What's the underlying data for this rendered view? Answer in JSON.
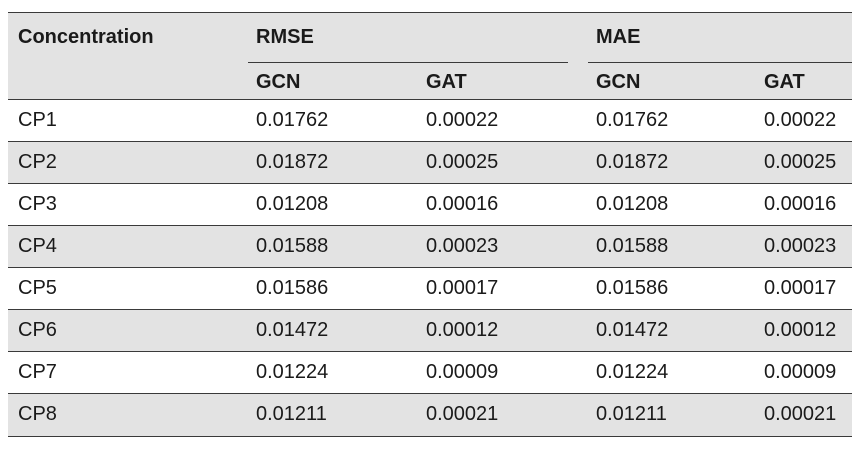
{
  "table": {
    "header": {
      "first_col": "Concentration",
      "group1": "RMSE",
      "group2": "MAE",
      "sub": [
        "GCN",
        "GAT",
        "GCN",
        "GAT"
      ]
    },
    "rows": [
      [
        "CP1",
        "0.01762",
        "0.00022",
        "0.01762",
        "0.00022"
      ],
      [
        "CP2",
        "0.01872",
        "0.00025",
        "0.01872",
        "0.00025"
      ],
      [
        "CP3",
        "0.01208",
        "0.00016",
        "0.01208",
        "0.00016"
      ],
      [
        "CP4",
        "0.01588",
        "0.00023",
        "0.01588",
        "0.00023"
      ],
      [
        "CP5",
        "0.01586",
        "0.00017",
        "0.01586",
        "0.00017"
      ],
      [
        "CP6",
        "0.01472",
        "0.00012",
        "0.01472",
        "0.00012"
      ],
      [
        "CP7",
        "0.01224",
        "0.00009",
        "0.01224",
        "0.00009"
      ],
      [
        "CP8",
        "0.01211",
        "0.00021",
        "0.01211",
        "0.00021"
      ]
    ]
  }
}
